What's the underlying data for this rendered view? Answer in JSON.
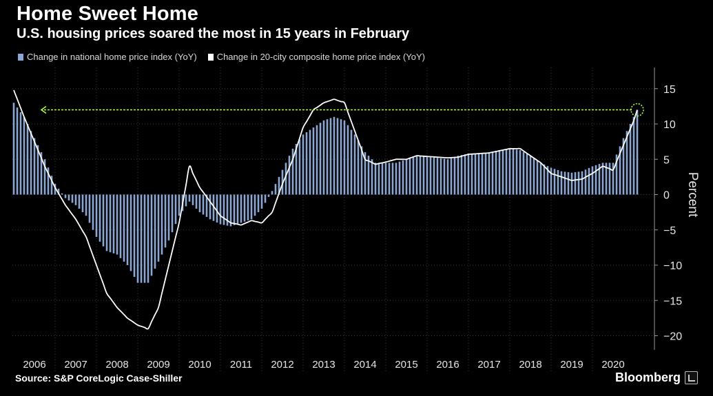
{
  "header": {
    "title": "Home Sweet Home",
    "subtitle": "U.S. housing prices soared the most in 15 years in February"
  },
  "footer": {
    "source": "Source: S&P CoreLogic Case-Shiller",
    "brand": "Bloomberg"
  },
  "colors": {
    "background": "#000000",
    "bars": "#8aa8d4",
    "line": "#ffffff",
    "highlight": "#b5ff1f",
    "grid": "#3a3a3a"
  },
  "chart_data": {
    "type": "bar",
    "title": "",
    "xlabel": "",
    "ylabel": "Percent",
    "ylim": [
      -22,
      18
    ],
    "yticks": [
      15,
      10,
      5,
      0,
      -5,
      -10,
      -15,
      -20
    ],
    "y_axis_position": "right",
    "legend_position": "top-left",
    "grid": "dotted horizontal",
    "x_tick_labels": [
      "2006",
      "2007",
      "2008",
      "2009",
      "2010",
      "2011",
      "2012",
      "2013",
      "2014",
      "2015",
      "2016",
      "2017",
      "2018",
      "2019",
      "2020"
    ],
    "x_start": "2006-01",
    "x_end": "2021-02",
    "series": [
      {
        "name": "Change in national home price index (YoY)",
        "type": "bar",
        "anchor_points": [
          [
            "2006-01",
            13.0
          ],
          [
            "2006-04",
            11.0
          ],
          [
            "2006-07",
            8.0
          ],
          [
            "2006-10",
            5.0
          ],
          [
            "2007-01",
            1.5
          ],
          [
            "2007-04",
            -0.5
          ],
          [
            "2007-07",
            -1.5
          ],
          [
            "2007-10",
            -3.0
          ],
          [
            "2008-01",
            -6.0
          ],
          [
            "2008-04",
            -8.0
          ],
          [
            "2008-07",
            -8.5
          ],
          [
            "2008-10",
            -10.0
          ],
          [
            "2009-01",
            -12.5
          ],
          [
            "2009-04",
            -12.5
          ],
          [
            "2009-07",
            -9.5
          ],
          [
            "2009-10",
            -6.5
          ],
          [
            "2010-01",
            -3.0
          ],
          [
            "2010-04",
            -1.0
          ],
          [
            "2010-07",
            -2.5
          ],
          [
            "2010-10",
            -3.5
          ],
          [
            "2011-01",
            -4.2
          ],
          [
            "2011-04",
            -4.5
          ],
          [
            "2011-07",
            -4.0
          ],
          [
            "2011-10",
            -3.5
          ],
          [
            "2012-01",
            -2.0
          ],
          [
            "2012-04",
            0.5
          ],
          [
            "2012-07",
            3.5
          ],
          [
            "2012-10",
            6.5
          ],
          [
            "2013-01",
            8.5
          ],
          [
            "2013-04",
            9.5
          ],
          [
            "2013-07",
            10.5
          ],
          [
            "2013-10",
            11.0
          ],
          [
            "2014-01",
            10.5
          ],
          [
            "2014-04",
            8.5
          ],
          [
            "2014-07",
            6.0
          ],
          [
            "2014-10",
            4.5
          ],
          [
            "2015-01",
            4.5
          ],
          [
            "2015-04",
            4.5
          ],
          [
            "2015-07",
            5.0
          ],
          [
            "2015-10",
            5.5
          ],
          [
            "2016-01",
            5.3
          ],
          [
            "2016-04",
            5.2
          ],
          [
            "2016-07",
            5.0
          ],
          [
            "2016-10",
            5.5
          ],
          [
            "2017-01",
            5.8
          ],
          [
            "2017-04",
            5.8
          ],
          [
            "2017-07",
            6.0
          ],
          [
            "2017-10",
            6.3
          ],
          [
            "2018-01",
            6.5
          ],
          [
            "2018-04",
            6.3
          ],
          [
            "2018-07",
            5.5
          ],
          [
            "2018-10",
            4.5
          ],
          [
            "2019-01",
            3.8
          ],
          [
            "2019-04",
            3.3
          ],
          [
            "2019-07",
            3.1
          ],
          [
            "2019-10",
            3.3
          ],
          [
            "2020-01",
            4.0
          ],
          [
            "2020-04",
            4.5
          ],
          [
            "2020-07",
            4.5
          ],
          [
            "2020-10",
            8.0
          ],
          [
            "2021-01",
            11.0
          ],
          [
            "2021-02",
            12.0
          ]
        ]
      },
      {
        "name": "Change in 20-city composite home price index (YoY)",
        "type": "line",
        "anchor_points": [
          [
            "2006-01",
            14.8
          ],
          [
            "2006-04",
            11.0
          ],
          [
            "2006-07",
            7.5
          ],
          [
            "2006-10",
            4.0
          ],
          [
            "2007-01",
            1.0
          ],
          [
            "2007-04",
            -1.5
          ],
          [
            "2007-07",
            -3.5
          ],
          [
            "2007-10",
            -6.0
          ],
          [
            "2008-01",
            -10.0
          ],
          [
            "2008-04",
            -14.0
          ],
          [
            "2008-07",
            -16.0
          ],
          [
            "2008-10",
            -17.5
          ],
          [
            "2009-01",
            -18.5
          ],
          [
            "2009-04",
            -19.0
          ],
          [
            "2009-07",
            -16.0
          ],
          [
            "2009-10",
            -10.0
          ],
          [
            "2010-01",
            -4.0
          ],
          [
            "2010-04",
            4.0
          ],
          [
            "2010-07",
            1.0
          ],
          [
            "2010-10",
            -1.0
          ],
          [
            "2011-01",
            -3.0
          ],
          [
            "2011-04",
            -4.0
          ],
          [
            "2011-07",
            -4.3
          ],
          [
            "2011-10",
            -3.7
          ],
          [
            "2012-01",
            -4.0
          ],
          [
            "2012-04",
            -2.5
          ],
          [
            "2012-07",
            1.5
          ],
          [
            "2012-10",
            5.0
          ],
          [
            "2013-01",
            9.5
          ],
          [
            "2013-04",
            12.0
          ],
          [
            "2013-07",
            13.0
          ],
          [
            "2013-10",
            13.5
          ],
          [
            "2014-01",
            13.0
          ],
          [
            "2014-04",
            9.0
          ],
          [
            "2014-07",
            5.0
          ],
          [
            "2014-10",
            4.3
          ],
          [
            "2015-01",
            4.6
          ],
          [
            "2015-04",
            5.0
          ],
          [
            "2015-07",
            5.0
          ],
          [
            "2015-10",
            5.5
          ],
          [
            "2016-01",
            5.4
          ],
          [
            "2016-04",
            5.3
          ],
          [
            "2016-07",
            5.2
          ],
          [
            "2016-10",
            5.3
          ],
          [
            "2017-01",
            5.7
          ],
          [
            "2017-04",
            5.8
          ],
          [
            "2017-07",
            5.9
          ],
          [
            "2017-10",
            6.2
          ],
          [
            "2018-01",
            6.5
          ],
          [
            "2018-04",
            6.5
          ],
          [
            "2018-07",
            5.5
          ],
          [
            "2018-10",
            4.5
          ],
          [
            "2019-01",
            3.0
          ],
          [
            "2019-04",
            2.5
          ],
          [
            "2019-07",
            2.0
          ],
          [
            "2019-10",
            2.2
          ],
          [
            "2020-01",
            3.0
          ],
          [
            "2020-04",
            4.0
          ],
          [
            "2020-07",
            3.5
          ],
          [
            "2020-10",
            7.0
          ],
          [
            "2021-01",
            10.5
          ],
          [
            "2021-02",
            12.0
          ]
        ]
      }
    ],
    "annotation": {
      "type": "reference-arrow",
      "y": 12.0,
      "from": "2021-02",
      "to": "2006-01"
    }
  }
}
